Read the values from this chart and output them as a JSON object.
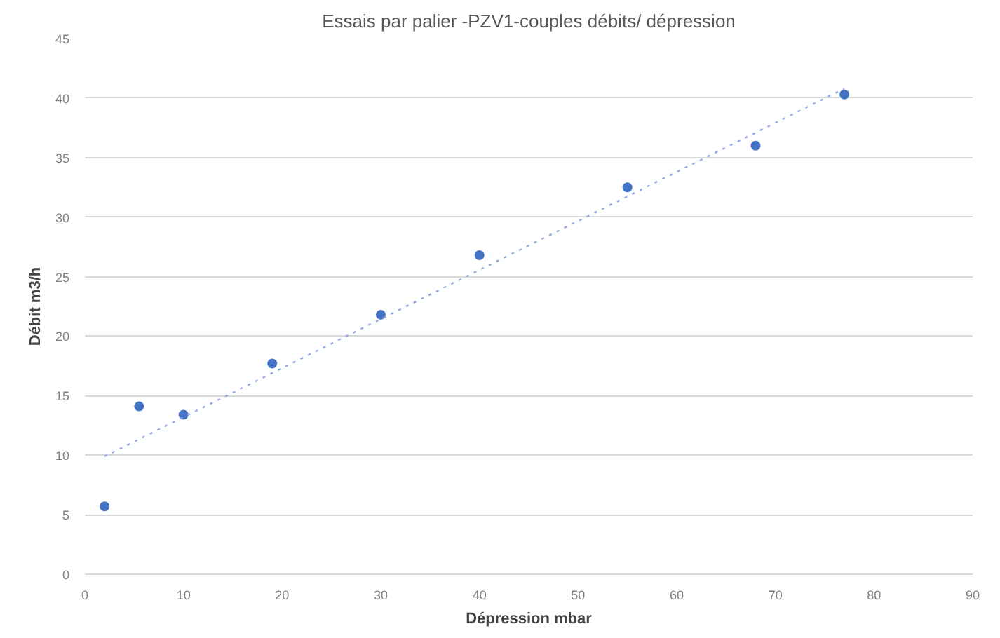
{
  "chart_data": {
    "type": "scatter",
    "title": "Essais par palier -PZV1-couples débits/ dépression",
    "xlabel": "Dépression mbar",
    "ylabel": "Débit m3/h",
    "xlim": [
      0,
      90
    ],
    "xticks": [
      0,
      10,
      20,
      30,
      40,
      50,
      60,
      70,
      80,
      90
    ],
    "ylim": [
      0,
      45
    ],
    "yticks": [
      0,
      5,
      10,
      15,
      20,
      25,
      30,
      35,
      40,
      45
    ],
    "grid": "y",
    "series": [
      {
        "marker": "circle",
        "color": "#4472c4",
        "x": [
          2,
          5.5,
          10,
          19,
          30,
          40,
          55,
          68,
          77
        ],
        "values": [
          5.7,
          14.1,
          13.4,
          17.7,
          21.8,
          26.8,
          32.5,
          36,
          40.3
        ]
      },
      {
        "type": "line",
        "marker": "none",
        "color": "#8faadc",
        "line_style": "dotted",
        "x": [
          2,
          77
        ],
        "values": [
          9.9,
          40.8
        ]
      }
    ]
  }
}
